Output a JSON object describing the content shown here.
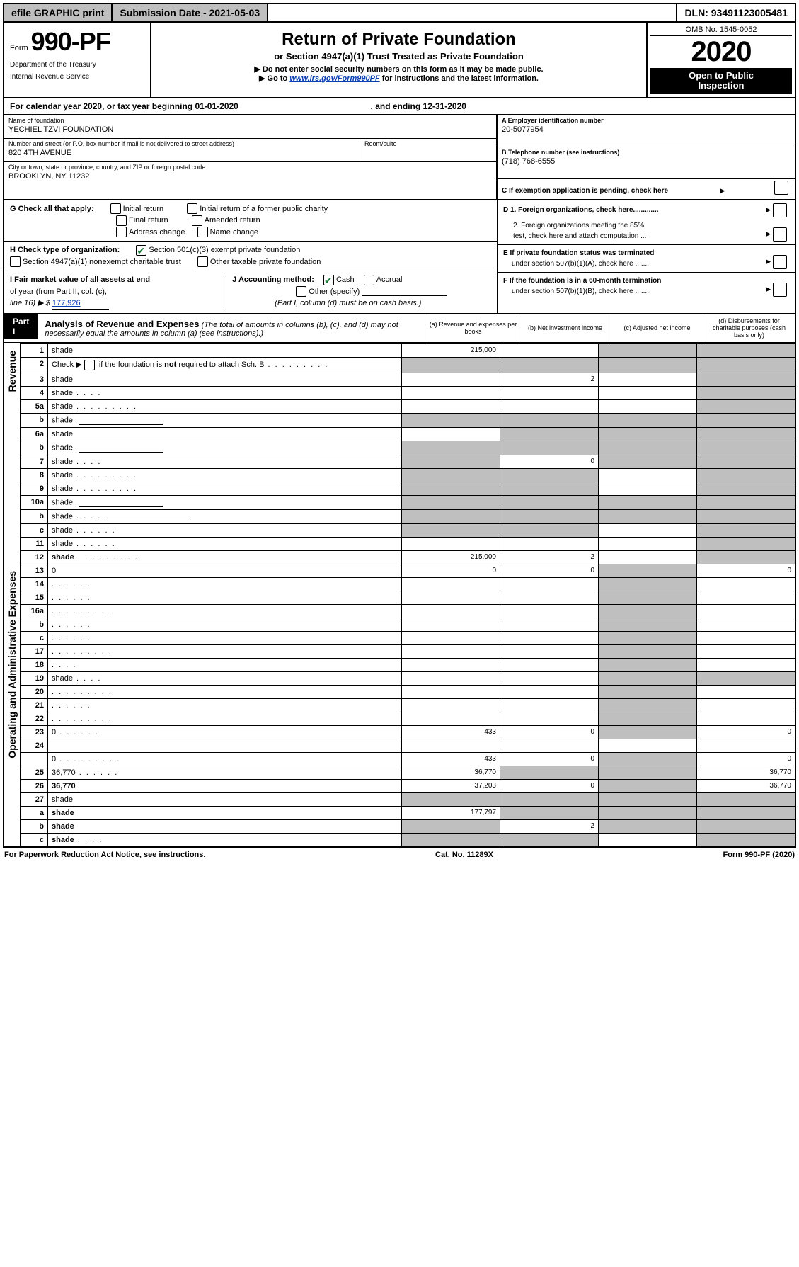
{
  "topbar": {
    "efile": "efile GRAPHIC print",
    "submission": "Submission Date - 2021-05-03",
    "dln": "DLN: 93491123005481"
  },
  "header": {
    "form_label": "Form",
    "form_no": "990-PF",
    "dept1": "Department of the Treasury",
    "dept2": "Internal Revenue Service",
    "title": "Return of Private Foundation",
    "sub1": "or Section 4947(a)(1) Trust Treated as Private Foundation",
    "sub2a": "▶ Do not enter social security numbers on this form as it may be made public.",
    "sub2b_pre": "▶ Go to ",
    "sub2b_link": "www.irs.gov/Form990PF",
    "sub2b_post": " for instructions and the latest information.",
    "omb": "OMB No. 1545-0052",
    "year": "2020",
    "open_pub1": "Open to Public",
    "open_pub2": "Inspection"
  },
  "calyear": {
    "pre": "For calendar year 2020, or tax year beginning ",
    "begin": "01-01-2020",
    "mid": " , and ending ",
    "end": "12-31-2020"
  },
  "info": {
    "name_label": "Name of foundation",
    "name": "YECHIEL TZVI FOUNDATION",
    "addr_label": "Number and street (or P.O. box number if mail is not delivered to street address)",
    "addr": "820 4TH AVENUE",
    "room_label": "Room/suite",
    "room": "",
    "city_label": "City or town, state or province, country, and ZIP or foreign postal code",
    "city": "BROOKLYN, NY  11232",
    "a_label": "A Employer identification number",
    "a_val": "20-5077954",
    "b_label": "B Telephone number (see instructions)",
    "b_val": "(718) 768-6555",
    "c_label": "C If exemption application is pending, check here"
  },
  "g": {
    "label": "G Check all that apply:",
    "opts": [
      "Initial return",
      "Initial return of a former public charity",
      "Final return",
      "Amended return",
      "Address change",
      "Name change"
    ]
  },
  "h": {
    "label": "H Check type of organization:",
    "opt1": "Section 501(c)(3) exempt private foundation",
    "opt2": "Section 4947(a)(1) nonexempt charitable trust",
    "opt3": "Other taxable private foundation"
  },
  "i": {
    "label1": "I Fair market value of all assets at end",
    "label2": "of year (from Part II, col. (c),",
    "label3": "line 16) ▶ $",
    "val": "177,926"
  },
  "j": {
    "label": "J Accounting method:",
    "opts": [
      "Cash",
      "Accrual"
    ],
    "other": "Other (specify)",
    "note": "(Part I, column (d) must be on cash basis.)"
  },
  "d": {
    "d1": "D 1. Foreign organizations, check here.............",
    "d2a": "2. Foreign organizations meeting the 85%",
    "d2b": "test, check here and attach computation ..."
  },
  "e": {
    "e1": "E  If private foundation status was terminated",
    "e2": "under section 507(b)(1)(A), check here ......."
  },
  "f": {
    "f1": "F  If the foundation is in a 60-month termination",
    "f2": "under section 507(b)(1)(B), check here ........"
  },
  "part1": {
    "label": "Part I",
    "title": "Analysis of Revenue and Expenses",
    "sub": " (The total of amounts in columns (b), (c), and (d) may not necessarily equal the amounts in column (a) (see instructions).)",
    "cols": {
      "a": "(a)   Revenue and expenses per books",
      "b": "(b)  Net investment income",
      "c": "(c)  Adjusted net income",
      "d": "(d)  Disbursements for charitable purposes (cash basis only)"
    }
  },
  "sections": {
    "revenue": "Revenue",
    "expenses": "Operating and Administrative Expenses"
  },
  "rows": [
    {
      "n": "1",
      "d": "shade",
      "a": "215,000",
      "b": "",
      "c": "shade"
    },
    {
      "n": "2",
      "d": "shade",
      "dclass": "dots",
      "a": "shade",
      "b": "shade",
      "c": "shade",
      "bold_not": true
    },
    {
      "n": "3",
      "d": "shade",
      "a": "",
      "b": "2",
      "c": ""
    },
    {
      "n": "4",
      "d": "shade",
      "dclass": "dots-short",
      "a": "",
      "b": "",
      "c": ""
    },
    {
      "n": "5a",
      "d": "shade",
      "dclass": "dots",
      "a": "",
      "b": "",
      "c": ""
    },
    {
      "n": "b",
      "d": "shade",
      "inset": true,
      "a": "shade",
      "b": "shade",
      "c": "shade"
    },
    {
      "n": "6a",
      "d": "shade",
      "a": "",
      "b": "shade",
      "c": "shade"
    },
    {
      "n": "b",
      "d": "shade",
      "inset": true,
      "a": "shade",
      "b": "shade",
      "c": "shade"
    },
    {
      "n": "7",
      "d": "shade",
      "dclass": "dots-short",
      "a": "shade",
      "b": "0",
      "c": "shade"
    },
    {
      "n": "8",
      "d": "shade",
      "dclass": "dots",
      "a": "shade",
      "b": "shade",
      "c": ""
    },
    {
      "n": "9",
      "d": "shade",
      "dclass": "dots",
      "a": "shade",
      "b": "shade",
      "c": ""
    },
    {
      "n": "10a",
      "d": "shade",
      "inset": true,
      "a": "shade",
      "b": "shade",
      "c": "shade"
    },
    {
      "n": "b",
      "d": "shade",
      "dclass": "dots-short",
      "inset": true,
      "a": "shade",
      "b": "shade",
      "c": "shade"
    },
    {
      "n": "c",
      "d": "shade",
      "dclass": "dots-med",
      "a": "shade",
      "b": "shade",
      "c": ""
    },
    {
      "n": "11",
      "d": "shade",
      "dclass": "dots-med",
      "a": "",
      "b": "",
      "c": ""
    },
    {
      "n": "12",
      "d": "shade",
      "dclass": "dots",
      "bold": true,
      "a": "215,000",
      "b": "2",
      "c": ""
    },
    {
      "n": "13",
      "d": "0",
      "a": "0",
      "b": "0",
      "c": "shade"
    },
    {
      "n": "14",
      "d": "",
      "dclass": "dots-med",
      "a": "",
      "b": "",
      "c": "shade"
    },
    {
      "n": "15",
      "d": "",
      "dclass": "dots-med",
      "a": "",
      "b": "",
      "c": "shade"
    },
    {
      "n": "16a",
      "d": "",
      "dclass": "dots",
      "a": "",
      "b": "",
      "c": "shade"
    },
    {
      "n": "b",
      "d": "",
      "dclass": "dots-med",
      "a": "",
      "b": "",
      "c": "shade"
    },
    {
      "n": "c",
      "d": "",
      "dclass": "dots-med",
      "a": "",
      "b": "",
      "c": "shade"
    },
    {
      "n": "17",
      "d": "",
      "dclass": "dots",
      "a": "",
      "b": "",
      "c": "shade"
    },
    {
      "n": "18",
      "d": "",
      "dclass": "dots-short",
      "a": "",
      "b": "",
      "c": "shade"
    },
    {
      "n": "19",
      "d": "shade",
      "dclass": "dots-short",
      "a": "",
      "b": "",
      "c": "shade"
    },
    {
      "n": "20",
      "d": "",
      "dclass": "dots",
      "a": "",
      "b": "",
      "c": "shade"
    },
    {
      "n": "21",
      "d": "",
      "dclass": "dots-med",
      "a": "",
      "b": "",
      "c": "shade"
    },
    {
      "n": "22",
      "d": "",
      "dclass": "dots",
      "a": "",
      "b": "",
      "c": "shade"
    },
    {
      "n": "23",
      "d": "0",
      "dclass": "dots-med",
      "a": "433",
      "b": "0",
      "c": "shade"
    },
    {
      "n": "24",
      "d": "",
      "bold": true,
      "a": "",
      "b": "",
      "c": "",
      "noborder": true
    },
    {
      "n": "",
      "d": "0",
      "dclass": "dots",
      "a": "433",
      "b": "0",
      "c": "shade"
    },
    {
      "n": "25",
      "d": "36,770",
      "dclass": "dots-med",
      "a": "36,770",
      "b": "shade",
      "c": "shade"
    },
    {
      "n": "26",
      "d": "36,770",
      "bold": true,
      "a": "37,203",
      "b": "0",
      "c": "shade"
    },
    {
      "n": "27",
      "d": "shade",
      "a": "shade",
      "b": "shade",
      "c": "shade"
    },
    {
      "n": "a",
      "d": "shade",
      "bold": true,
      "a": "177,797",
      "b": "shade",
      "c": "shade"
    },
    {
      "n": "b",
      "d": "shade",
      "bold": true,
      "a": "shade",
      "b": "2",
      "c": "shade"
    },
    {
      "n": "c",
      "d": "shade",
      "bold": true,
      "dclass": "dots-short",
      "a": "shade",
      "b": "shade",
      "c": ""
    }
  ],
  "footer": {
    "left": "For Paperwork Reduction Act Notice, see instructions.",
    "mid": "Cat. No. 11289X",
    "right": "Form 990-PF (2020)"
  }
}
